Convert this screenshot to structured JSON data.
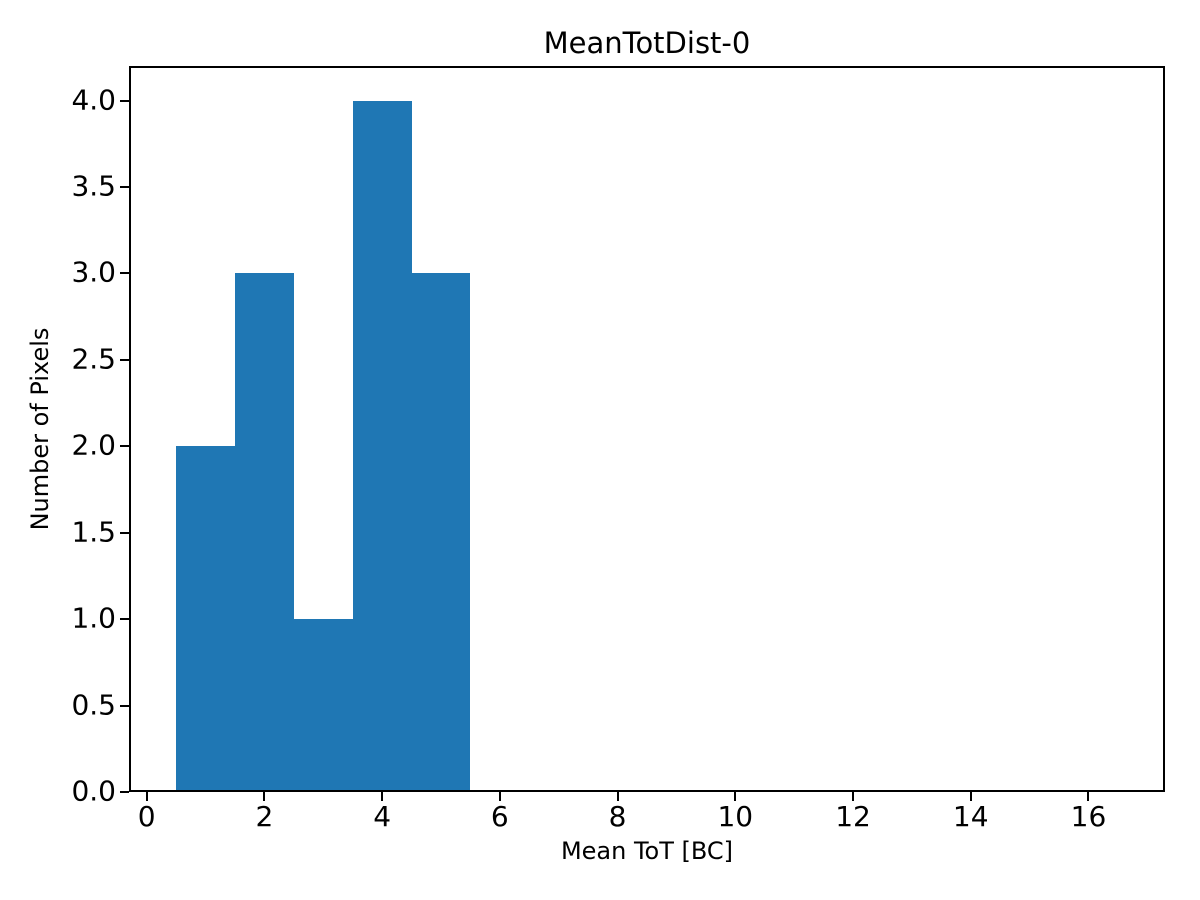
{
  "chart_data": {
    "type": "bar",
    "style": "histogram",
    "title": "MeanTotDist-0",
    "xlabel": "Mean ToT [BC]",
    "ylabel": "Number of Pixels",
    "bar_color": "#1f77b4",
    "background_color": "#ffffff",
    "axis_color": "#000000",
    "bin_edges": [
      0.5,
      1.5,
      2.5,
      3.5,
      4.5,
      5.5
    ],
    "counts": [
      2,
      3,
      1,
      4,
      3
    ],
    "xlim": [
      -0.3,
      17.3
    ],
    "ylim": [
      0,
      4.2
    ],
    "x_ticks": [
      {
        "value": 0,
        "label": "0"
      },
      {
        "value": 2,
        "label": "2"
      },
      {
        "value": 4,
        "label": "4"
      },
      {
        "value": 6,
        "label": "6"
      },
      {
        "value": 8,
        "label": "8"
      },
      {
        "value": 10,
        "label": "10"
      },
      {
        "value": 12,
        "label": "12"
      },
      {
        "value": 14,
        "label": "14"
      },
      {
        "value": 16,
        "label": "16"
      }
    ],
    "y_ticks": [
      {
        "value": 0,
        "label": "0.0"
      },
      {
        "value": 0.5,
        "label": "0.5"
      },
      {
        "value": 1,
        "label": "1.0"
      },
      {
        "value": 1.5,
        "label": "1.5"
      },
      {
        "value": 2,
        "label": "2.0"
      },
      {
        "value": 2.5,
        "label": "2.5"
      },
      {
        "value": 3,
        "label": "3.0"
      },
      {
        "value": 3.5,
        "label": "3.5"
      },
      {
        "value": 4,
        "label": "4.0"
      }
    ],
    "grid": false,
    "legend": "none"
  }
}
